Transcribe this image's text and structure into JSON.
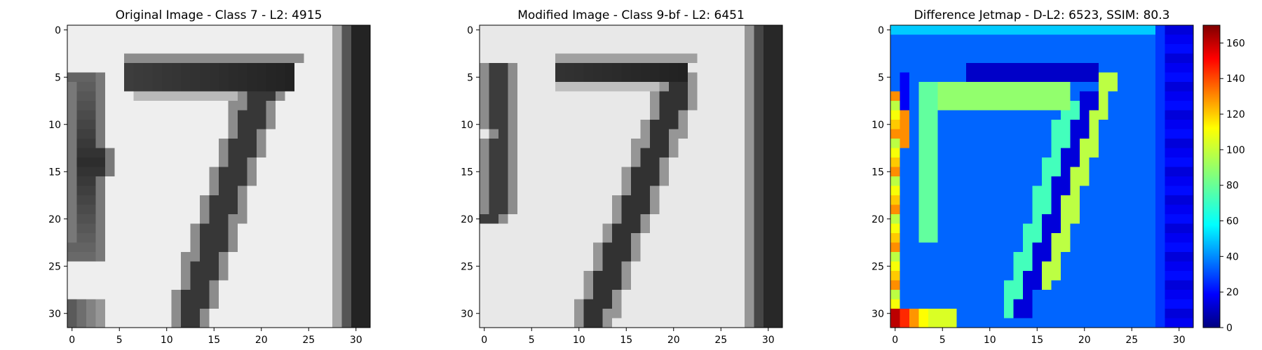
{
  "panels": [
    {
      "title": "Original Image - Class 7 - L2: 4915",
      "title_color": "#ff0000",
      "kind": "original",
      "colormap": "gray"
    },
    {
      "title": "Modified Image - Class 9-bf - L2: 6451",
      "title_color": "#000000",
      "kind": "modified",
      "colormap": "gray"
    },
    {
      "title": "Difference Jetmap - D-L2: 6523, SSIM: 80.3",
      "title_color": "#000000",
      "kind": "difference",
      "colormap": "jet"
    }
  ],
  "chart_data": {
    "type": "heatmap",
    "grid_size": 32,
    "x_ticks": [
      0,
      5,
      10,
      15,
      20,
      25,
      30
    ],
    "y_ticks": [
      0,
      5,
      10,
      15,
      20,
      25,
      30
    ],
    "xlim": [
      -0.5,
      31.5
    ],
    "ylim": [
      31.5,
      -0.5
    ],
    "colorbar": {
      "min": 0,
      "max": 170,
      "ticks": [
        0,
        20,
        40,
        60,
        80,
        100,
        120,
        140,
        160
      ],
      "colormap": "jet"
    },
    "gray_range": [
      0,
      255
    ],
    "digit": "7",
    "original_bar_rows": [
      4,
      6
    ],
    "original_bar_cols": [
      6,
      23
    ],
    "modified_bar_rows": [
      4,
      5
    ],
    "modified_bar_cols": [
      8,
      21
    ],
    "diagonal_start": {
      "row": 6,
      "col": 21
    },
    "diagonal_end": {
      "row": 31,
      "col": 11
    },
    "notes": "32x32 pixel panels; cell values approximated from the image"
  }
}
